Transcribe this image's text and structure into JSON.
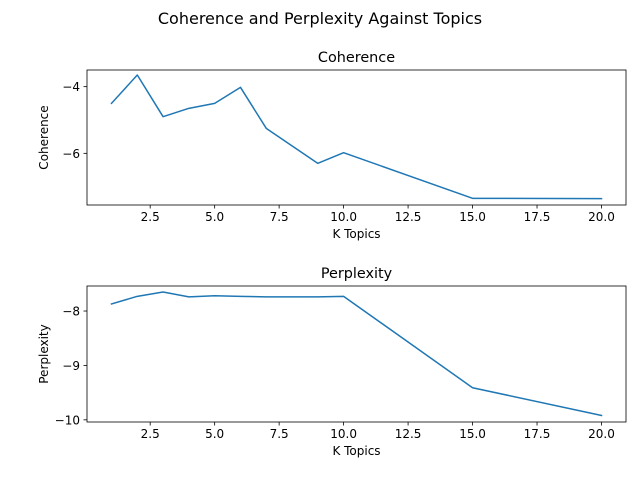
{
  "suptitle": "Coherence and Perplexity Against Topics",
  "chart_data": [
    {
      "type": "line",
      "title": "Coherence",
      "xlabel": "K Topics",
      "ylabel": "Coherence",
      "x": [
        1,
        2,
        3,
        4,
        5,
        6,
        7,
        9,
        10,
        15,
        20
      ],
      "series": [
        {
          "values": [
            -4.5,
            -3.65,
            -4.9,
            -4.65,
            -4.5,
            -4.02,
            -5.25,
            -6.3,
            -5.98,
            -7.35,
            -7.36
          ]
        }
      ],
      "xlim": [
        0.05,
        20.95
      ],
      "ylim": [
        -7.55,
        -3.5
      ],
      "xticks": [
        2.5,
        5.0,
        7.5,
        10.0,
        12.5,
        15.0,
        17.5,
        20.0
      ],
      "xtick_labels": [
        "2.5",
        "5.0",
        "7.5",
        "10.0",
        "12.5",
        "15.0",
        "17.5",
        "20.0"
      ],
      "yticks": [
        -4,
        -6
      ],
      "ytick_labels": [
        "−4",
        "−6"
      ],
      "grid": false,
      "line_color": "#1f77b4"
    },
    {
      "type": "line",
      "title": "Perplexity",
      "xlabel": "K Topics",
      "ylabel": "Perplexity",
      "x": [
        1,
        2,
        3,
        4,
        5,
        6,
        7,
        9,
        10,
        15,
        20
      ],
      "series": [
        {
          "values": [
            -7.87,
            -7.73,
            -7.65,
            -7.74,
            -7.72,
            -7.73,
            -7.74,
            -7.74,
            -7.73,
            -9.41,
            -9.92
          ]
        }
      ],
      "xlim": [
        0.05,
        20.95
      ],
      "ylim": [
        -10.04,
        -7.54
      ],
      "xticks": [
        2.5,
        5.0,
        7.5,
        10.0,
        12.5,
        15.0,
        17.5,
        20.0
      ],
      "xtick_labels": [
        "2.5",
        "5.0",
        "7.5",
        "10.0",
        "12.5",
        "15.0",
        "17.5",
        "20.0"
      ],
      "yticks": [
        -8,
        -9,
        -10
      ],
      "ytick_labels": [
        "−8",
        "−9",
        "−10"
      ],
      "grid": false,
      "line_color": "#1f77b4"
    }
  ]
}
